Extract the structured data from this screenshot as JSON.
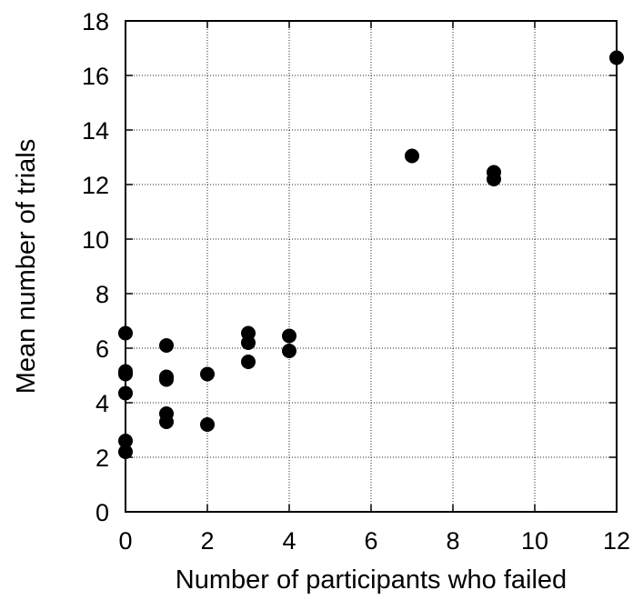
{
  "chart_data": {
    "type": "scatter",
    "title": "",
    "xlabel": "Number of participants who failed",
    "ylabel": "Mean number of trials",
    "xlim": [
      0,
      12
    ],
    "ylim": [
      0,
      18
    ],
    "xticks": [
      0,
      2,
      4,
      6,
      8,
      10,
      12
    ],
    "yticks": [
      0,
      2,
      4,
      6,
      8,
      10,
      12,
      14,
      16,
      18
    ],
    "grid": true,
    "legend": "none",
    "marker_color": "#000000",
    "series": [
      {
        "points": [
          [
            0,
            6.55
          ],
          [
            0,
            5.15
          ],
          [
            0,
            5.05
          ],
          [
            0,
            4.35
          ],
          [
            0,
            2.6
          ],
          [
            0,
            2.2
          ],
          [
            1,
            6.1
          ],
          [
            1,
            4.95
          ],
          [
            1,
            4.85
          ],
          [
            1,
            3.6
          ],
          [
            1,
            3.3
          ],
          [
            2,
            5.05
          ],
          [
            2,
            3.2
          ],
          [
            3,
            6.55
          ],
          [
            3,
            6.2
          ],
          [
            3,
            5.5
          ],
          [
            4,
            6.45
          ],
          [
            4,
            5.9
          ],
          [
            7,
            13.05
          ],
          [
            9,
            12.45
          ],
          [
            9,
            12.2
          ],
          [
            12,
            16.65
          ]
        ]
      }
    ]
  }
}
